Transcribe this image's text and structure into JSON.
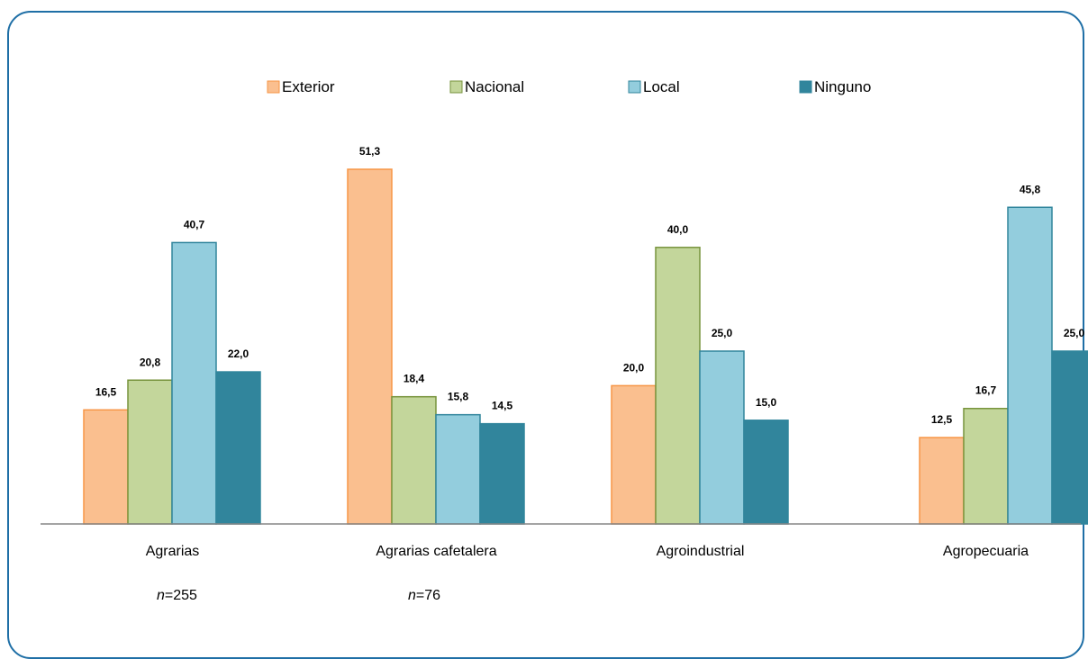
{
  "chart_data": {
    "type": "bar",
    "categories": [
      "Agrarias",
      "Agrarias cafetalera",
      "Agroindustrial",
      "Agropecuaria"
    ],
    "series": [
      {
        "name": "Exterior",
        "color": "#fabf8f",
        "stroke": "#f79646",
        "values": [
          16.5,
          51.3,
          20.0,
          12.5
        ]
      },
      {
        "name": "Nacional",
        "color": "#c3d69b",
        "stroke": "#77933c",
        "values": [
          20.8,
          18.4,
          40.0,
          16.7
        ]
      },
      {
        "name": "Local",
        "color": "#93cddd",
        "stroke": "#31859c",
        "values": [
          40.7,
          15.8,
          25.0,
          45.8
        ]
      },
      {
        "name": "Ninguno",
        "color": "#31859c",
        "stroke": "#31859c",
        "values": [
          22.0,
          14.5,
          15.0,
          25.0
        ]
      }
    ],
    "value_labels": [
      [
        "16,5",
        "51,3",
        "20,0",
        "12,5"
      ],
      [
        "20,8",
        "18,4",
        "40,0",
        "16,7"
      ],
      [
        "40,7",
        "15,8",
        "25,0",
        "45,8"
      ],
      [
        "22,0",
        "14,5",
        "15,0",
        "25,0"
      ]
    ],
    "sample_sizes": [
      {
        "prefix": "n",
        "value": "=255"
      },
      {
        "prefix": "n",
        "value": "=76"
      }
    ],
    "ylim": [
      0,
      52
    ],
    "legend_position": "top",
    "grid": false
  }
}
